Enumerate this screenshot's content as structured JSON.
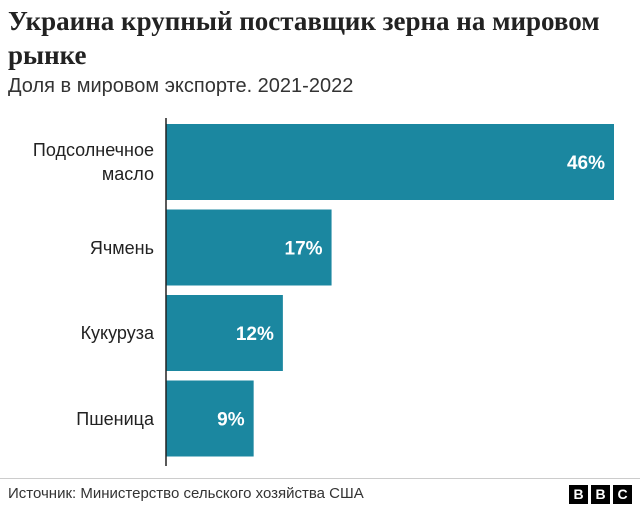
{
  "title": "Украина крупный поставщик зерна на мировом рынке",
  "subtitle": "Доля в мировом экспорте. 2021-2022",
  "source": "Источник: Министерство сельского хозяйства США",
  "logo": [
    "B",
    "B",
    "C"
  ],
  "colors": {
    "bar": "#1b87a0",
    "label": "#ffffff",
    "axis": "#222222"
  },
  "chart_data": {
    "type": "bar",
    "orientation": "horizontal",
    "categories": [
      "Подсолнечное масло",
      "Ячмень",
      "Кукуруза",
      "Пшеница"
    ],
    "values": [
      46,
      17,
      12,
      9
    ],
    "value_labels": [
      "46%",
      "17%",
      "12%",
      "9%"
    ],
    "unit": "%",
    "xlim": [
      0,
      46
    ],
    "grid": false,
    "legend": "none"
  }
}
